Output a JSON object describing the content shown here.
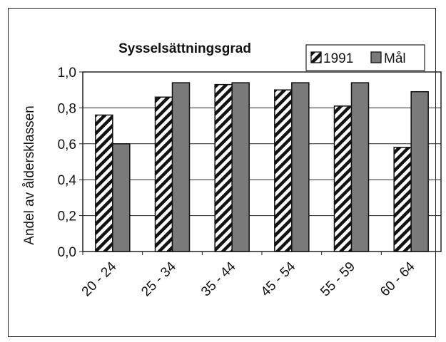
{
  "chart_data": {
    "type": "bar",
    "title": "Sysselsättningsgrad",
    "ylabel": "Andel av åldersklassen",
    "xlabel": "",
    "categories": [
      "20 - 24",
      "25 - 34",
      "35 - 44",
      "45 - 54",
      "55 - 59",
      "60 - 64"
    ],
    "series": [
      {
        "name": "1991",
        "values": [
          0.76,
          0.86,
          0.93,
          0.9,
          0.81,
          0.58
        ],
        "pattern": "hatched"
      },
      {
        "name": "Mål",
        "values": [
          0.6,
          0.94,
          0.94,
          0.94,
          0.94,
          0.89
        ],
        "color": "#7a7a7a"
      }
    ],
    "ylim": [
      0,
      1.0
    ],
    "yticks": [
      "0,0",
      "0,2",
      "0,4",
      "0,6",
      "0,8",
      "1,0"
    ],
    "grid": true,
    "legend_position": "top-right"
  }
}
